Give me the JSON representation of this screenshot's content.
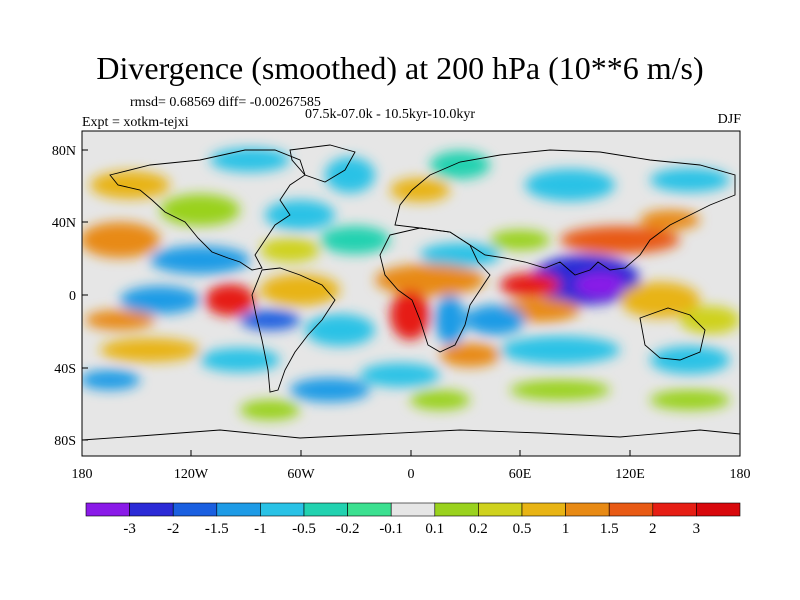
{
  "header": {
    "title": "Divergence (smoothed) at 200 hPa (10**6 m/s)",
    "stats": "rmsd= 0.68569 diff= -0.00267585",
    "experiment": "Expt = xotkm-tejxi",
    "period": "07.5k-07.0k - 10.5kyr-10.0kyr",
    "season": "DJF"
  },
  "map": {
    "lat_ticks": [
      "80N",
      "40N",
      "0",
      "40S",
      "80S"
    ],
    "lon_ticks": [
      "180",
      "120W",
      "60W",
      "0",
      "60E",
      "120E",
      "180"
    ]
  },
  "colorbar": {
    "labels": [
      "-3",
      "-2",
      "-1.5",
      "-1",
      "-0.5",
      "-0.2",
      "-0.1",
      "0.1",
      "0.2",
      "0.5",
      "1",
      "1.5",
      "2",
      "3"
    ],
    "colors": [
      "#8a1ae8",
      "#2b2ad6",
      "#1a5fe0",
      "#1e9be6",
      "#29c2e6",
      "#22d2b0",
      "#3be090",
      "#e6e6e6",
      "#9ad21e",
      "#cfd21e",
      "#e8b414",
      "#e88a14",
      "#e85a14",
      "#e61e14",
      "#d8080c"
    ]
  }
}
